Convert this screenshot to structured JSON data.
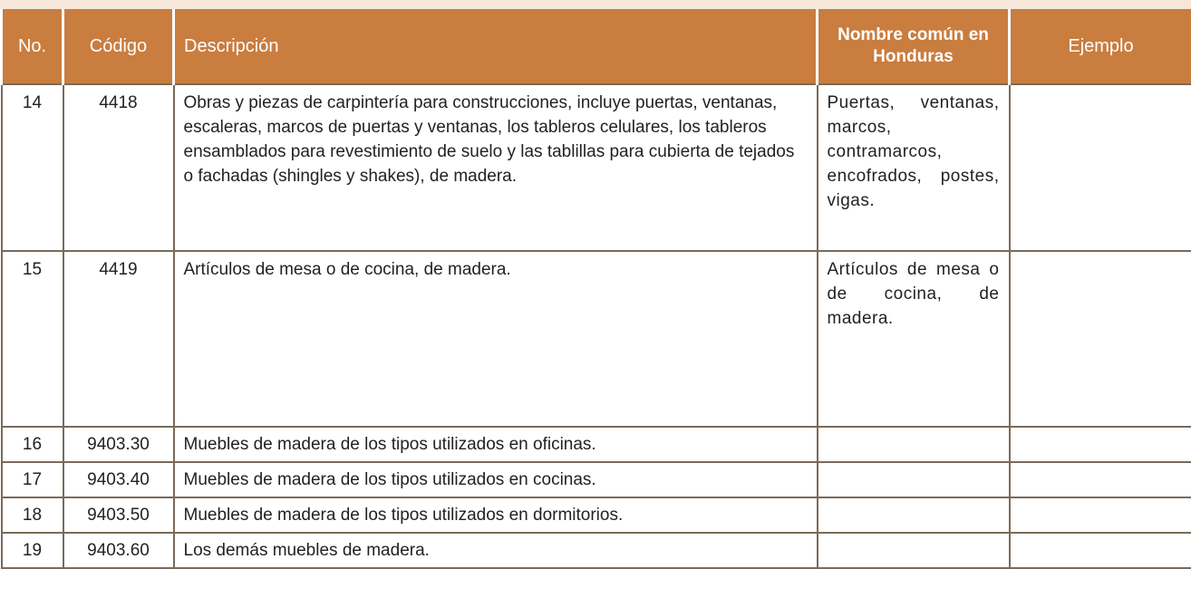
{
  "table": {
    "header": [
      "No.",
      "Código",
      "Descripción",
      "Nombre común en Honduras",
      "Ejemplo"
    ],
    "rows": [
      [
        "14",
        "4418",
        "Obras y piezas de carpintería para construcciones, incluye puertas, ventanas, escaleras, marcos de puertas y ventanas, los tableros celulares, los tableros ensamblados para revestimiento de suelo y las tablillas para cubierta de tejados o fachadas (shingles y shakes), de madera.",
        "Puertas, ventanas, marcos, contramarcos, encofrados, postes, vigas."
      ],
      [
        "15",
        "4419",
        "Artículos de mesa o de cocina, de madera.",
        "Artículos de mesa o de cocina, de madera."
      ],
      [
        "16",
        "9403.30",
        "Muebles de madera de los tipos utilizados en oficinas."
      ],
      [
        "17",
        "9403.40",
        "Muebles de madera de los tipos utilizados en cocinas."
      ],
      [
        "18",
        "9403.50",
        "Muebles de madera de los tipos utilizados en dormitorios."
      ],
      [
        "19",
        "9403.60",
        "Los demás muebles de madera."
      ]
    ]
  }
}
